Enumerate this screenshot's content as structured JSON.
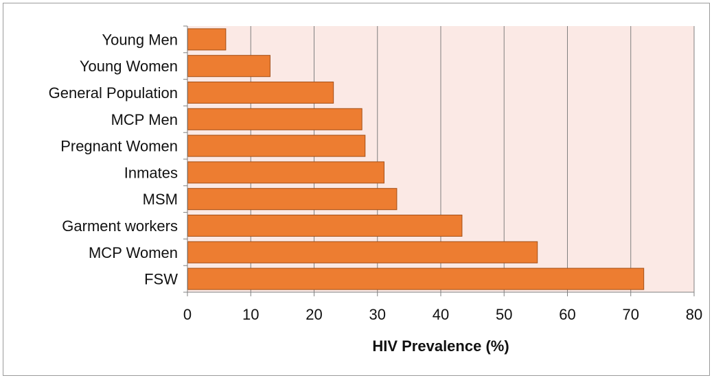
{
  "chart_data": {
    "type": "bar",
    "orientation": "horizontal",
    "categories": [
      "Young Men",
      "Young Women",
      "General Population",
      "MCP Men",
      "Pregnant Women",
      "Inmates",
      "MSM",
      "Garment workers",
      "MCP Women",
      "FSW"
    ],
    "values": [
      6,
      13,
      23,
      27.5,
      28,
      31,
      33,
      43.3,
      55.2,
      72
    ],
    "xlabel": "HIV Prevalence (%)",
    "ylabel": "",
    "xlim": [
      0,
      80
    ],
    "xticks": [
      "0",
      "10",
      "20",
      "30",
      "40",
      "50",
      "60",
      "70",
      "80"
    ],
    "grid": "vertical",
    "colors": {
      "bar_fill": "#ed7d31",
      "bar_stroke": "#a34f17",
      "plot_background": "#fbe9e5",
      "gridline": "#7f7f7f"
    }
  }
}
